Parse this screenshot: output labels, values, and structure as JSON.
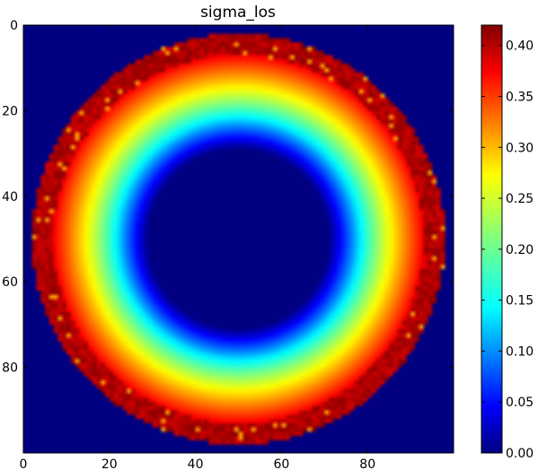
{
  "chart_data": {
    "type": "heatmap",
    "title": "sigma_los",
    "xlabel": "",
    "ylabel": "",
    "colormap": "jet",
    "grid": false,
    "x_range": [
      0,
      100
    ],
    "y_range": [
      0,
      100
    ],
    "y_inverted": true,
    "x_ticks": [
      "0",
      "20",
      "40",
      "60",
      "80"
    ],
    "y_ticks": [
      "0",
      "20",
      "40",
      "60",
      "80"
    ],
    "x_tick_values": [
      0,
      20,
      40,
      60,
      80
    ],
    "y_tick_values": [
      0,
      20,
      40,
      60,
      80
    ],
    "colorbar": {
      "range": [
        0.0,
        0.42
      ],
      "ticks": [
        "0.00",
        "0.05",
        "0.10",
        "0.15",
        "0.20",
        "0.25",
        "0.30",
        "0.35",
        "0.40"
      ],
      "tick_values": [
        0.0,
        0.05,
        0.1,
        0.15,
        0.2,
        0.25,
        0.3,
        0.35,
        0.4
      ]
    },
    "structure": {
      "center": [
        50,
        50
      ],
      "inner_void_radius": 21,
      "inner_ramp_end_radius": 27,
      "outer_radius": 48,
      "background_value": 0.0,
      "inner_ramp_values": [
        0.0,
        0.12
      ],
      "ring_values": [
        0.12,
        0.37
      ],
      "edge_band_radius": [
        43,
        48
      ],
      "edge_band_value": 0.4
    }
  }
}
